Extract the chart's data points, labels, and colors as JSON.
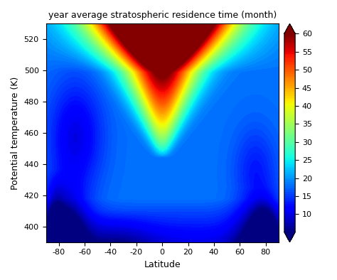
{
  "title": "year average stratospheric residence time (month)",
  "xlabel": "Latitude",
  "ylabel": "Potential temperature (K)",
  "lat_range": [
    -90,
    90
  ],
  "theta_range": [
    390,
    530
  ],
  "colorbar_ticks": [
    10,
    15,
    20,
    25,
    30,
    35,
    40,
    45,
    50,
    55,
    60
  ],
  "clim": [
    5,
    60
  ],
  "colormap": "jet",
  "xticks": [
    -80,
    -60,
    -40,
    -20,
    0,
    20,
    40,
    60,
    80
  ],
  "yticks": [
    400,
    420,
    440,
    460,
    480,
    500,
    520
  ]
}
